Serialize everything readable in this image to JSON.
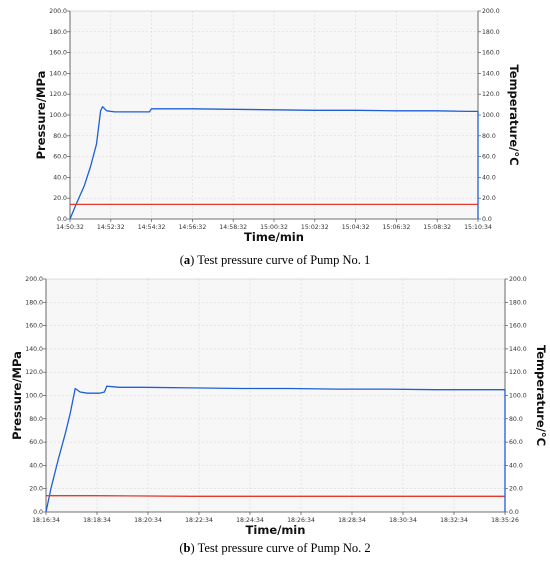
{
  "chart_data": [
    {
      "type": "line",
      "caption_letter": "a",
      "caption_text": "Test pressure curve of Pump No. 1",
      "xlabel": "Time/min",
      "ylabel": "Pressure/MPa",
      "y2label": "Temperature/°C",
      "ylim": [
        0,
        200
      ],
      "y2lim": [
        0,
        200
      ],
      "y_ticks": [
        "0.0",
        "20.0",
        "40.0",
        "60.0",
        "80.0",
        "100.0",
        "120.0",
        "140.0",
        "160.0",
        "180.0",
        "200.0"
      ],
      "y2_ticks": [
        "0.0",
        "20.0",
        "40.0",
        "60.0",
        "80.0",
        "100.0",
        "120.0",
        "140.0",
        "160.0",
        "180.0",
        "200.0"
      ],
      "x_ticks": [
        "14:50:32",
        "14:52:32",
        "14:54:32",
        "14:56:32",
        "14:58:32",
        "15:00:32",
        "15:02:32",
        "15:04:32",
        "15:06:32",
        "15:08:32",
        "15:10:34"
      ],
      "xlim_minutes": [
        0,
        20.03
      ],
      "grid": true,
      "series": [
        {
          "color": "#1f5fd6",
          "x_minutes": [
            0,
            0.3,
            0.7,
            1.0,
            1.3,
            1.5,
            1.6,
            1.8,
            2.2,
            2.8,
            3.9,
            4.0,
            5.0,
            6.0,
            8.0,
            10.0,
            12.0,
            14.0,
            16.0,
            18.0,
            19.5,
            20.03
          ],
          "values": [
            0,
            14,
            32,
            50,
            72,
            104,
            108,
            104,
            103,
            103,
            103,
            106,
            106,
            106,
            105.5,
            105,
            104.5,
            104.5,
            104,
            104,
            103.5,
            103.5
          ]
        },
        {
          "color": "#e23b2e",
          "x_minutes": [
            0,
            20.03
          ],
          "values": [
            14,
            14
          ]
        }
      ]
    },
    {
      "type": "line",
      "caption_letter": "b",
      "caption_text": "Test pressure curve of Pump No. 2",
      "xlabel": "Time/min",
      "ylabel": "Pressure/MPa",
      "y2label": "Temperature/°C",
      "ylim": [
        0,
        200
      ],
      "y2lim": [
        0,
        200
      ],
      "y_ticks": [
        "0.0",
        "20.0",
        "40.0",
        "60.0",
        "80.0",
        "100.0",
        "120.0",
        "140.0",
        "160.0",
        "180.0",
        "200.0"
      ],
      "y2_ticks": [
        "0.0",
        "20.0",
        "40.0",
        "60.0",
        "80.0",
        "100.0",
        "120.0",
        "140.0",
        "160.0",
        "180.0",
        "200.0"
      ],
      "x_ticks": [
        "18:16:34",
        "18:18:34",
        "18:20:34",
        "18:22:34",
        "18:24:34",
        "18:26:34",
        "18:28:34",
        "18:30:34",
        "18:32:34",
        "18:35:26"
      ],
      "xlim_minutes": [
        0,
        18.87
      ],
      "grid": true,
      "series": [
        {
          "color": "#1f5fd6",
          "x_minutes": [
            0,
            0.2,
            0.5,
            0.8,
            1.0,
            1.2,
            1.4,
            1.7,
            2.2,
            2.4,
            2.5,
            3.0,
            4.0,
            6.0,
            8.0,
            10.0,
            12.0,
            14.0,
            16.0,
            18.0,
            18.87
          ],
          "values": [
            0,
            20,
            45,
            68,
            85,
            106,
            103,
            102,
            102,
            103,
            108,
            107,
            107,
            106.5,
            106,
            106,
            105.5,
            105.5,
            105,
            105,
            105
          ]
        },
        {
          "color": "#e23b2e",
          "x_minutes": [
            0,
            2.0,
            6.0,
            10.0,
            14.0,
            18.87
          ],
          "values": [
            14,
            14,
            13.5,
            13.5,
            13.5,
            13.5
          ]
        }
      ]
    }
  ]
}
